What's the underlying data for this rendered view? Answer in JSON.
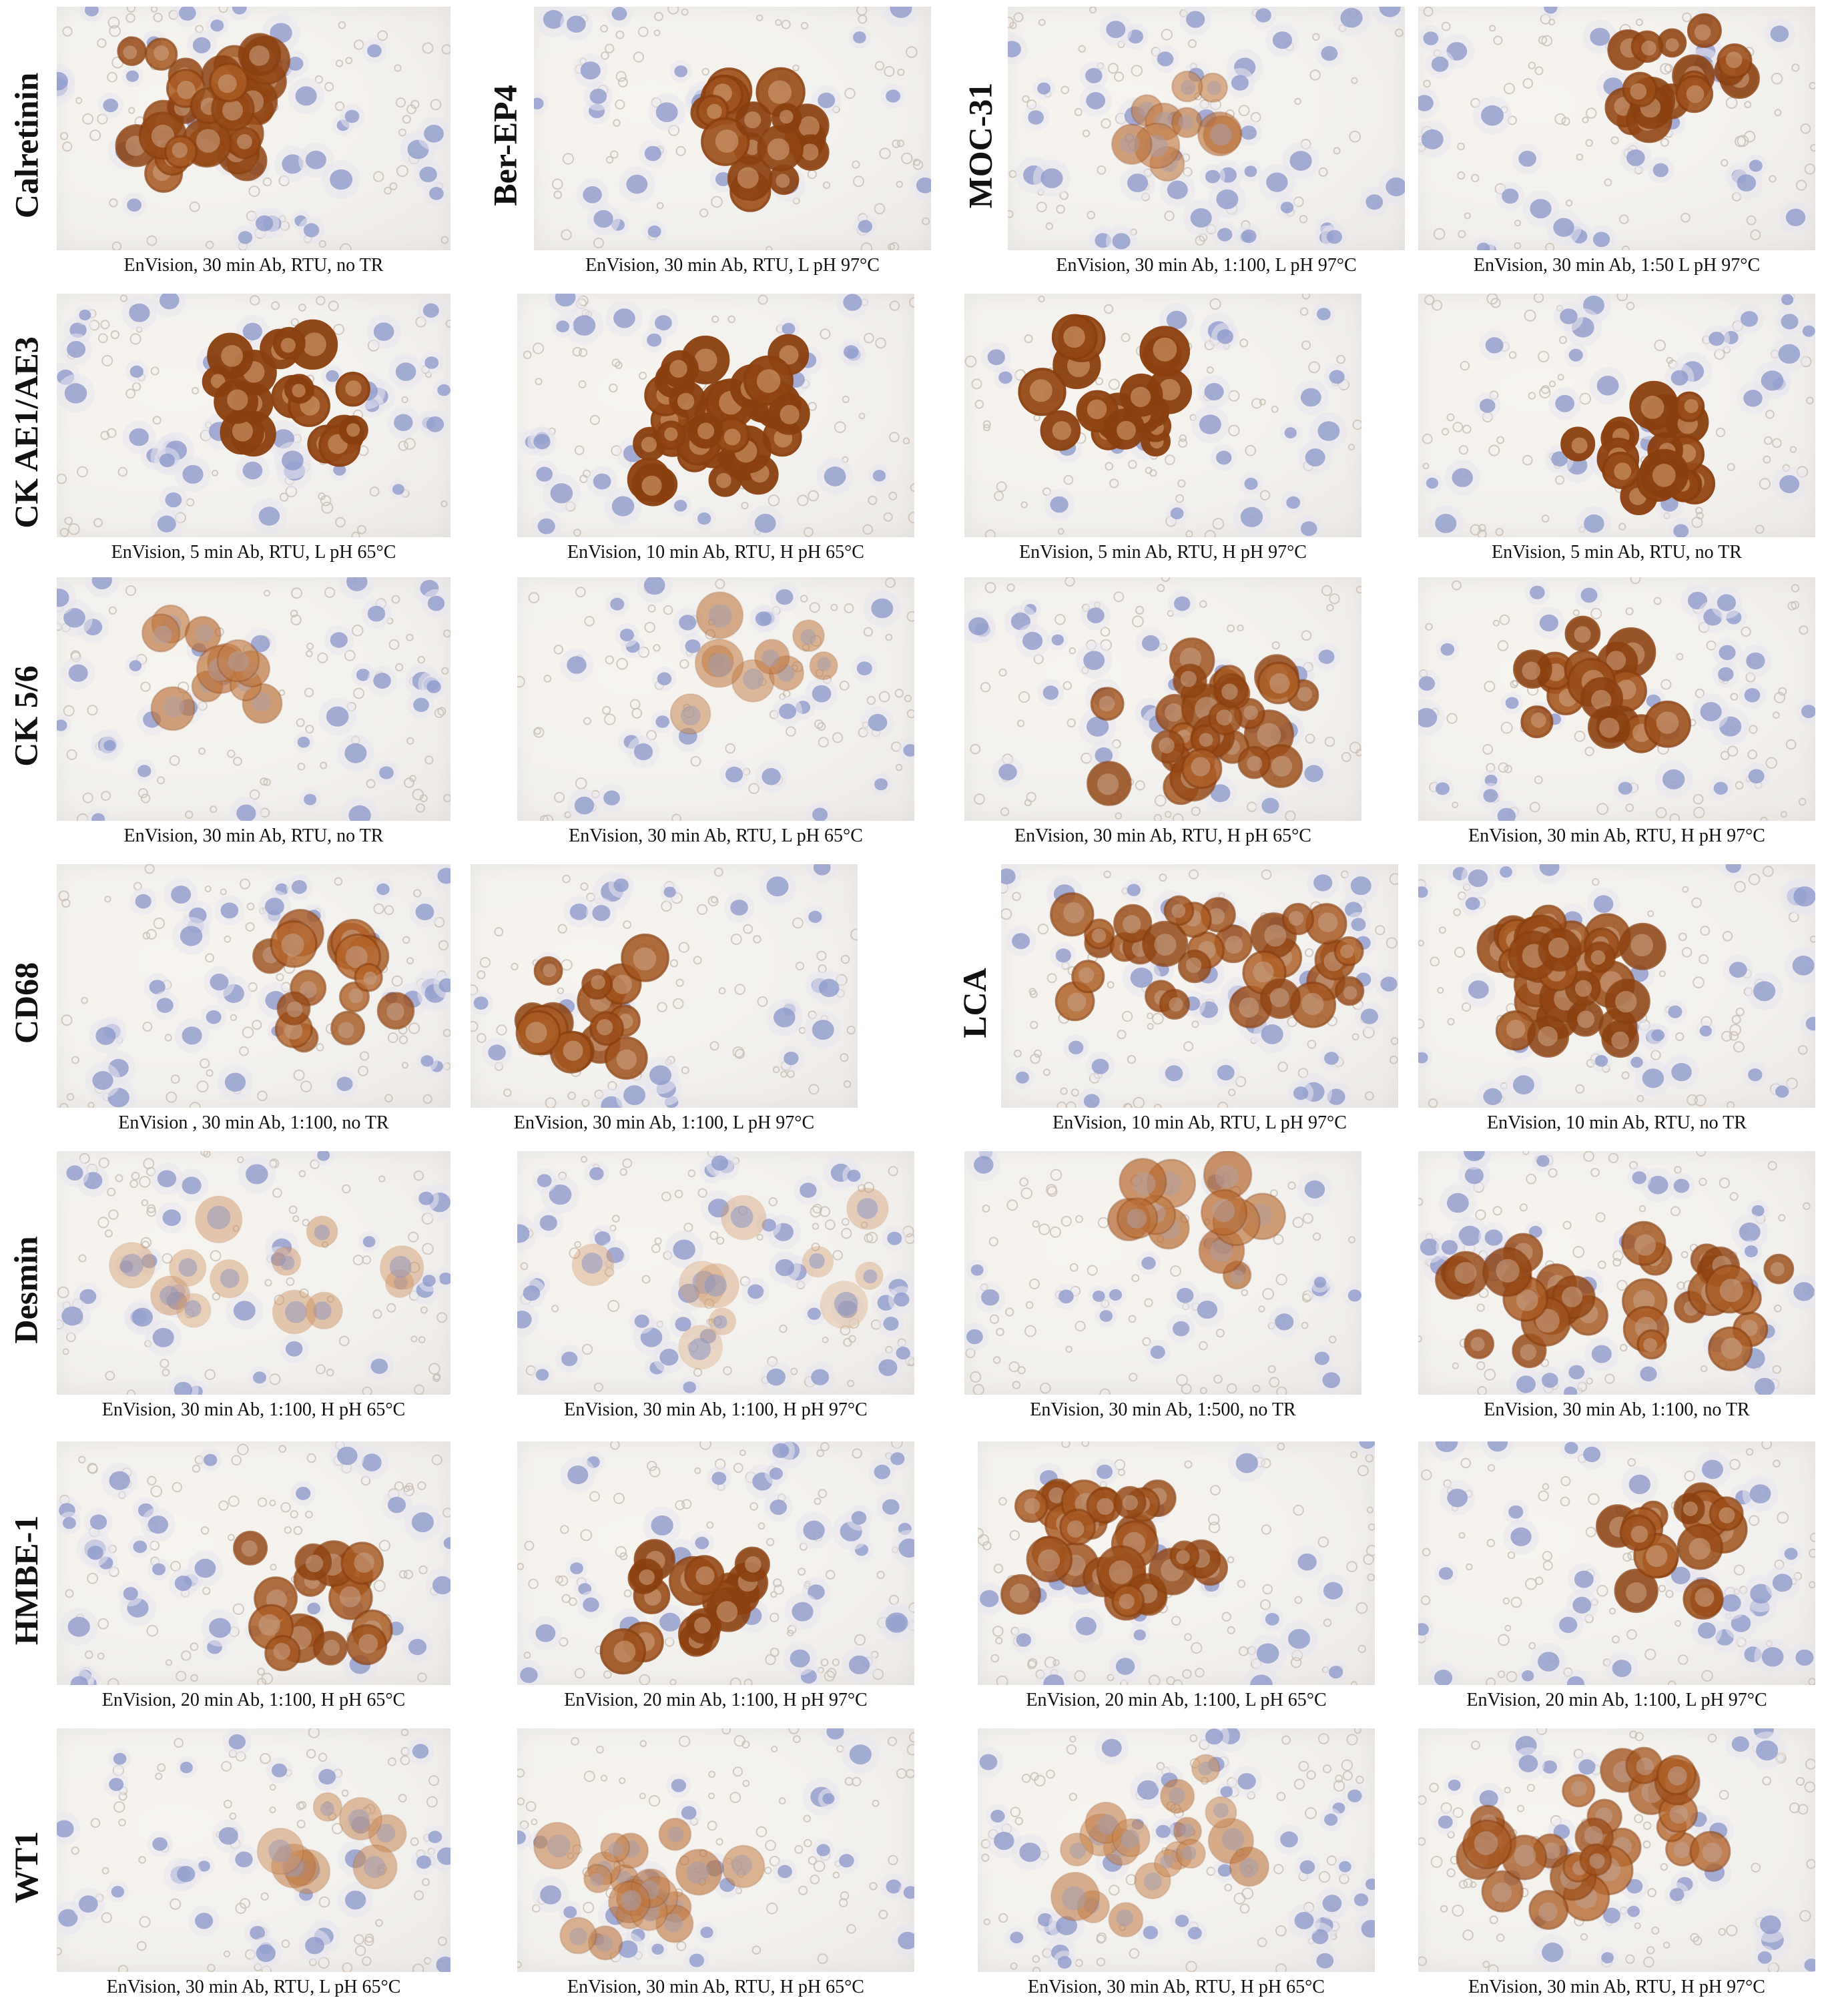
{
  "rows": [
    {
      "label": "Calretinin",
      "panels": [
        {
          "caption": "EnVision, 30 min Ab, RTU, no TR"
        },
        {
          "caption": "EnVision, 30 min Ab, RTU, L pH 97°C",
          "label": "Ber-EP4"
        },
        {
          "caption": "EnVision, 30 min Ab, 1:100, L pH 97°C",
          "label": "MOC-31"
        },
        {
          "caption": "EnVision, 30 min Ab, 1:50 L pH 97°C"
        }
      ]
    },
    {
      "label": "CK AE1/AE3",
      "panels": [
        {
          "caption": "EnVision, 5 min Ab, RTU, L pH 65°C"
        },
        {
          "caption": "EnVision, 10 min Ab, RTU, H pH 65°C"
        },
        {
          "caption": "EnVision, 5 min Ab, RTU, H pH 97°C"
        },
        {
          "caption": "EnVision, 5 min Ab, RTU, no TR"
        }
      ]
    },
    {
      "label": "CK 5/6",
      "panels": [
        {
          "caption": "EnVision, 30 min Ab, RTU, no TR"
        },
        {
          "caption": "EnVision, 30 min Ab, RTU, L pH 65°C"
        },
        {
          "caption": "EnVision, 30 min Ab, RTU, H pH 65°C"
        },
        {
          "caption": "EnVision, 30 min Ab, RTU, H pH 97°C"
        }
      ]
    },
    {
      "label": "CD68",
      "panels": [
        {
          "caption": "EnVision , 30 min Ab, 1:100, no TR"
        },
        {
          "caption": "EnVision, 30 min Ab, 1:100, L pH 97°C"
        },
        {
          "caption": "EnVision, 10 min Ab, RTU, L pH 97°C",
          "label": "LCA"
        },
        {
          "caption": "EnVision, 10 min Ab, RTU, no TR"
        }
      ]
    },
    {
      "label": "Desmin",
      "panels": [
        {
          "caption": "EnVision, 30 min Ab, 1:100, H pH 65°C"
        },
        {
          "caption": "EnVision, 30 min Ab, 1:100, H pH 97°C"
        },
        {
          "caption": "EnVision, 30 min Ab, 1:500, no TR"
        },
        {
          "caption": "EnVision, 30 min Ab, 1:100, no TR"
        }
      ]
    },
    {
      "label": "HMBE-1",
      "panels": [
        {
          "caption": "EnVision, 20 min Ab, 1:100, H pH 65°C"
        },
        {
          "caption": "EnVision, 20 min Ab, 1:100, H pH 97°C"
        },
        {
          "caption": "EnVision, 20 min Ab, 1:100, L pH 65°C"
        },
        {
          "caption": "EnVision, 20 min Ab, 1:100, L pH 97°C"
        }
      ]
    },
    {
      "label": "WT1",
      "panels": [
        {
          "caption": "EnVision, 30 min Ab, RTU, L pH 65°C"
        },
        {
          "caption": "EnVision, 30 min Ab, RTU, H pH 65°C"
        },
        {
          "caption": "EnVision, 30 min Ab, RTU, H pH 65°C"
        },
        {
          "caption": "EnVision, 30 min Ab, RTU, H pH 97°C"
        }
      ]
    }
  ],
  "colors": {
    "stain_strong": "#8a3f0f",
    "stain_medium": "#b5652a",
    "stain_light": "#d9a679",
    "nucleus_blue": "#8a96c8",
    "rbc": "#c9bfb4",
    "background": "#f3f1ee"
  },
  "stain_intensity": [
    [
      0.85,
      0.95,
      0.45,
      0.9
    ],
    [
      1.0,
      1.0,
      1.0,
      1.0
    ],
    [
      0.5,
      0.35,
      0.8,
      0.9
    ],
    [
      0.75,
      0.85,
      0.8,
      0.85
    ],
    [
      0.15,
      0.05,
      0.55,
      0.8
    ],
    [
      0.8,
      0.9,
      0.8,
      0.85
    ],
    [
      0.3,
      0.4,
      0.35,
      0.7
    ]
  ]
}
